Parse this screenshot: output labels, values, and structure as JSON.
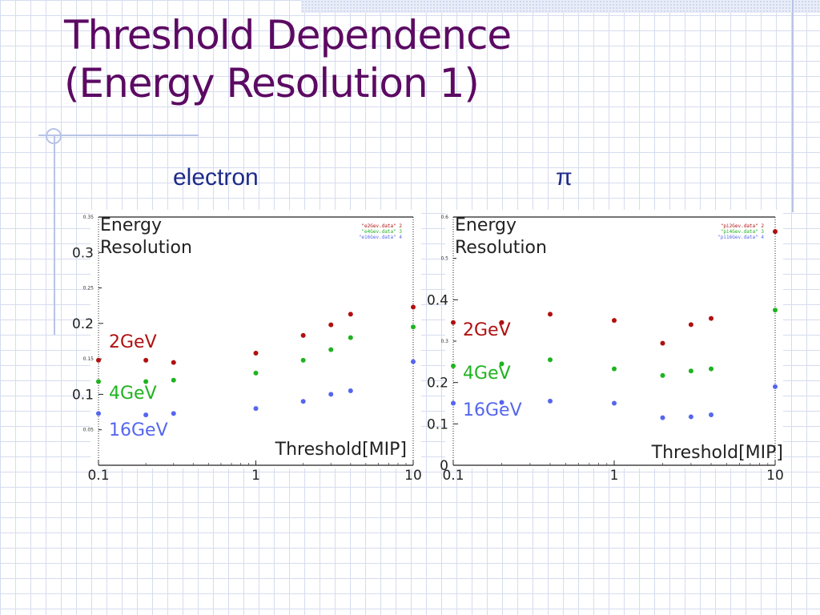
{
  "slide": {
    "title_line1": "Threshold Dependence",
    "title_line2": "(Energy Resolution 1)",
    "label_left": "electron",
    "label_right": "π"
  },
  "colors": {
    "title": "#5c0a63",
    "label": "#1e2b8a",
    "red": "#b01010",
    "green": "#1fb31f",
    "blue": "#5566ee"
  },
  "chart_data": [
    {
      "type": "scatter",
      "ylabel_lines": [
        "Energy",
        "Resolution"
      ],
      "xlabel": "Threshold[MIP]",
      "x_scale": "log",
      "xlim": [
        0.1,
        10
      ],
      "ylim": [
        0,
        0.35
      ],
      "x_ticks": [
        {
          "v": 0.1,
          "label": "0.1"
        },
        {
          "v": 1,
          "label": "1"
        },
        {
          "v": 10,
          "label": "10"
        }
      ],
      "y_ticks": [
        {
          "v": 0.1,
          "label": "0.1"
        },
        {
          "v": 0.2,
          "label": "0.2"
        },
        {
          "v": 0.3,
          "label": "0.3"
        }
      ],
      "y_minor_ticks": [
        {
          "v": 0.05,
          "label": "0.05"
        },
        {
          "v": 0.15,
          "label": "0.15"
        },
        {
          "v": 0.25,
          "label": "0.25"
        },
        {
          "v": 0.35,
          "label": "0.35"
        }
      ],
      "legend_entries": [
        "\"e2Gev.data\"  2",
        "\"e4Gev.data\"  3",
        "\"e16Gev.data\"  4"
      ],
      "series": [
        {
          "name": "2GeV",
          "color": "#b01010",
          "x": [
            0.1,
            0.2,
            0.3,
            1,
            2,
            3,
            4,
            10
          ],
          "y": [
            0.148,
            0.148,
            0.145,
            0.158,
            0.183,
            0.198,
            0.213,
            0.223
          ]
        },
        {
          "name": "4GeV",
          "color": "#1fb31f",
          "x": [
            0.1,
            0.2,
            0.3,
            1,
            2,
            3,
            4,
            10
          ],
          "y": [
            0.118,
            0.118,
            0.12,
            0.13,
            0.148,
            0.163,
            0.18,
            0.195
          ]
        },
        {
          "name": "16GeV",
          "color": "#5566ee",
          "x": [
            0.1,
            0.2,
            0.3,
            1,
            2,
            3,
            4,
            10
          ],
          "y": [
            0.073,
            0.071,
            0.073,
            0.08,
            0.09,
            0.1,
            0.105,
            0.146
          ]
        }
      ]
    },
    {
      "type": "scatter",
      "ylabel_lines": [
        "Energy",
        "Resolution"
      ],
      "xlabel": "Threshold[MIP]",
      "x_scale": "log",
      "xlim": [
        0.1,
        10
      ],
      "ylim": [
        0,
        0.6
      ],
      "x_ticks": [
        {
          "v": 0.1,
          "label": "0.1"
        },
        {
          "v": 1,
          "label": "1"
        },
        {
          "v": 10,
          "label": "10"
        }
      ],
      "y_ticks": [
        {
          "v": 0,
          "label": "0"
        },
        {
          "v": 0.1,
          "label": "0.1"
        },
        {
          "v": 0.2,
          "label": "0.2"
        },
        {
          "v": 0.4,
          "label": "0.4"
        }
      ],
      "y_minor_ticks": [
        {
          "v": 0.3,
          "label": "0.3"
        },
        {
          "v": 0.5,
          "label": "0.5"
        },
        {
          "v": 0.6,
          "label": "0.6"
        }
      ],
      "legend_entries": [
        "\"pi2Gev.data\"  2",
        "\"pi4Gev.data\"  3",
        "\"pi16Gev.data\"  4"
      ],
      "series": [
        {
          "name": "2GeV",
          "color": "#b01010",
          "x": [
            0.1,
            0.2,
            0.4,
            1,
            2,
            3,
            4,
            10
          ],
          "y": [
            0.345,
            0.345,
            0.365,
            0.35,
            0.295,
            0.34,
            0.355,
            0.565
          ]
        },
        {
          "name": "4GeV",
          "color": "#1fb31f",
          "x": [
            0.1,
            0.2,
            0.4,
            1,
            2,
            3,
            4,
            10
          ],
          "y": [
            0.24,
            0.245,
            0.255,
            0.233,
            0.217,
            0.228,
            0.233,
            0.375
          ]
        },
        {
          "name": "16GeV",
          "color": "#5566ee",
          "x": [
            0.1,
            0.2,
            0.4,
            1,
            2,
            3,
            4,
            10
          ],
          "y": [
            0.15,
            0.152,
            0.155,
            0.15,
            0.115,
            0.117,
            0.122,
            0.19
          ]
        }
      ]
    }
  ]
}
